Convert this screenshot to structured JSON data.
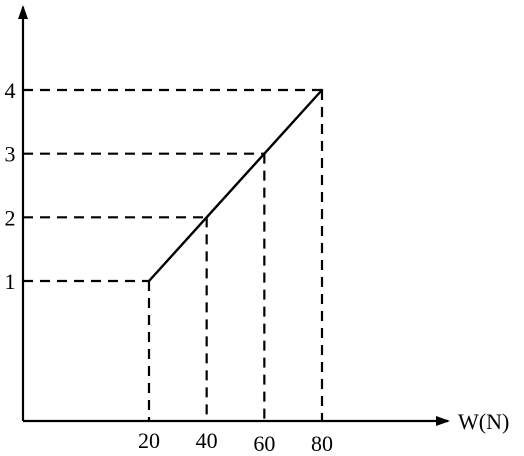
{
  "chart_data": {
    "type": "line",
    "title": "",
    "xlabel": "W(N)",
    "ylabel": "",
    "x": [
      20,
      40,
      60,
      80
    ],
    "series": [
      {
        "values": [
          1,
          2,
          3,
          4
        ]
      }
    ],
    "x_ticks": [
      "20",
      "40",
      "60",
      "80"
    ],
    "y_ticks": [
      "1",
      "2",
      "3",
      "4"
    ],
    "xlim": [
      0,
      80
    ],
    "ylim": [
      0,
      4
    ],
    "grid": false,
    "guide_lines": "dashed"
  }
}
